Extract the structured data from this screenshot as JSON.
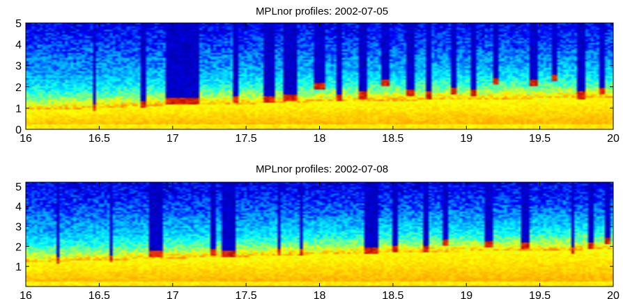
{
  "chart_data": [
    {
      "type": "heatmap",
      "title": "MPLnor profiles: 2002-07-05",
      "xlabel": "",
      "ylabel": "",
      "xlim": [
        16,
        20
      ],
      "ylim": [
        0,
        5
      ],
      "x_ticks": [
        "16",
        "16.5",
        "17",
        "17.5",
        "18",
        "18.5",
        "19",
        "19.5",
        "20"
      ],
      "y_ticks": [
        "0",
        "1",
        "2",
        "3",
        "4",
        "5"
      ],
      "colormap": [
        "#00008f",
        "#0000ff",
        "#00a0ff",
        "#00ffff",
        "#80ff80",
        "#ffff00",
        "#ffa000",
        "#ff4000",
        "#a00000"
      ],
      "boundary_layer_top": [
        [
          16.0,
          0.9
        ],
        [
          16.5,
          1.0
        ],
        [
          17.0,
          1.15
        ],
        [
          17.5,
          1.2
        ],
        [
          18.0,
          1.3
        ],
        [
          18.5,
          1.35
        ],
        [
          19.0,
          1.4
        ],
        [
          19.5,
          1.45
        ],
        [
          20.0,
          1.5
        ]
      ],
      "cloud_columns": [
        {
          "x": 16.47,
          "width": 0.02,
          "base": 1.0
        },
        {
          "x": 16.8,
          "width": 0.05,
          "base": 1.2
        },
        {
          "x": 16.98,
          "width": 0.07,
          "base": 1.3
        },
        {
          "x": 17.1,
          "width": 0.18,
          "base": 1.3
        },
        {
          "x": 17.42,
          "width": 0.04,
          "base": 1.4
        },
        {
          "x": 17.65,
          "width": 0.08,
          "base": 1.4
        },
        {
          "x": 17.8,
          "width": 0.1,
          "base": 1.5
        },
        {
          "x": 18.0,
          "width": 0.08,
          "base": 2.0
        },
        {
          "x": 18.13,
          "width": 0.05,
          "base": 1.5
        },
        {
          "x": 18.3,
          "width": 0.05,
          "base": 1.6
        },
        {
          "x": 18.45,
          "width": 0.05,
          "base": 2.2
        },
        {
          "x": 18.62,
          "width": 0.05,
          "base": 1.7
        },
        {
          "x": 18.74,
          "width": 0.04,
          "base": 1.6
        },
        {
          "x": 18.92,
          "width": 0.04,
          "base": 1.8
        },
        {
          "x": 19.05,
          "width": 0.05,
          "base": 1.7
        },
        {
          "x": 19.2,
          "width": 0.05,
          "base": 2.3
        },
        {
          "x": 19.45,
          "width": 0.06,
          "base": 2.2
        },
        {
          "x": 19.6,
          "width": 0.05,
          "base": 2.4
        },
        {
          "x": 19.78,
          "width": 0.04,
          "base": 1.6
        },
        {
          "x": 19.92,
          "width": 0.04,
          "base": 1.8
        }
      ]
    },
    {
      "type": "heatmap",
      "title": "MPLnor profiles: 2002-07-08",
      "xlabel": "",
      "ylabel": "",
      "xlim": [
        16,
        20
      ],
      "ylim": [
        0,
        5.2
      ],
      "x_ticks": [
        "16",
        "16.5",
        "17",
        "17.5",
        "18",
        "18.5",
        "19",
        "19.5",
        "20"
      ],
      "y_ticks": [
        "1",
        "2",
        "3",
        "4",
        "5"
      ],
      "colormap": [
        "#00008f",
        "#0000ff",
        "#00a0ff",
        "#00ffff",
        "#80ff80",
        "#ffff00",
        "#ffa000",
        "#ff4000",
        "#a00000"
      ],
      "boundary_layer_top": [
        [
          16.0,
          1.2
        ],
        [
          16.5,
          1.3
        ],
        [
          17.0,
          1.4
        ],
        [
          17.5,
          1.5
        ],
        [
          18.0,
          1.6
        ],
        [
          18.5,
          1.7
        ],
        [
          19.0,
          1.75
        ],
        [
          19.5,
          1.8
        ],
        [
          20.0,
          1.85
        ]
      ],
      "cloud_columns": [
        {
          "x": 16.22,
          "width": 0.02,
          "base": 1.3
        },
        {
          "x": 16.58,
          "width": 0.03,
          "base": 1.4
        },
        {
          "x": 16.88,
          "width": 0.1,
          "base": 1.6
        },
        {
          "x": 17.28,
          "width": 0.04,
          "base": 1.7
        },
        {
          "x": 17.38,
          "width": 0.08,
          "base": 1.6
        },
        {
          "x": 17.72,
          "width": 0.03,
          "base": 1.7
        },
        {
          "x": 17.88,
          "width": 0.03,
          "base": 1.7
        },
        {
          "x": 18.35,
          "width": 0.1,
          "base": 1.8
        },
        {
          "x": 18.52,
          "width": 0.04,
          "base": 1.9
        },
        {
          "x": 18.72,
          "width": 0.04,
          "base": 1.9
        },
        {
          "x": 18.85,
          "width": 0.04,
          "base": 2.2
        },
        {
          "x": 19.15,
          "width": 0.05,
          "base": 2.1
        },
        {
          "x": 19.4,
          "width": 0.04,
          "base": 2.0
        },
        {
          "x": 19.72,
          "width": 0.03,
          "base": 1.8
        },
        {
          "x": 19.85,
          "width": 0.05,
          "base": 2.0
        },
        {
          "x": 19.96,
          "width": 0.04,
          "base": 2.3
        }
      ]
    }
  ]
}
